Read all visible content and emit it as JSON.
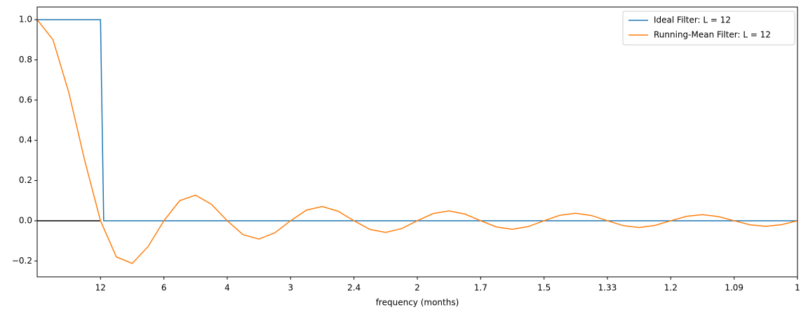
{
  "chart_data": {
    "type": "line",
    "xlabel": "frequency (months)",
    "xlim": [
      0,
      1
    ],
    "xticks": [
      {
        "value": 0.0833,
        "label": "12"
      },
      {
        "value": 0.1667,
        "label": "6"
      },
      {
        "value": 0.25,
        "label": "4"
      },
      {
        "value": 0.3333,
        "label": "3"
      },
      {
        "value": 0.4167,
        "label": "2.4"
      },
      {
        "value": 0.5,
        "label": "2"
      },
      {
        "value": 0.5833,
        "label": "1.7"
      },
      {
        "value": 0.6667,
        "label": "1.5"
      },
      {
        "value": 0.75,
        "label": "1.33"
      },
      {
        "value": 0.8333,
        "label": "1.2"
      },
      {
        "value": 0.9167,
        "label": "1.09"
      },
      1
    ],
    "ylim": [
      -0.279,
      1.063
    ],
    "yticks": [
      {
        "value": -0.2,
        "label": "−0.2"
      },
      {
        "value": 0,
        "label": "0.0"
      },
      0.2,
      0.4,
      0.6,
      0.8,
      {
        "value": 1,
        "label": "1.0"
      }
    ],
    "legend": "upper right",
    "hline": {
      "y": 0,
      "xmin": 0,
      "xmax": 0.0833,
      "color": "#000000"
    },
    "series": [
      {
        "name": "Ideal Filter: L = 12",
        "color": "#1f77b4",
        "x": [
          0,
          0.0833,
          0.0875,
          1
        ],
        "values": [
          1,
          1,
          0,
          0
        ]
      },
      {
        "name": "Running-Mean Filter: L = 12",
        "color": "#ff7f0e",
        "x": [
          0,
          0.0208,
          0.0417,
          0.0625,
          0.0833,
          0.1042,
          0.125,
          0.1458,
          0.1667,
          0.1875,
          0.2083,
          0.2292,
          0.25,
          0.2708,
          0.2917,
          0.3125,
          0.3333,
          0.3542,
          0.375,
          0.3958,
          0.4167,
          0.4375,
          0.4583,
          0.4792,
          0.5,
          0.5208,
          0.5417,
          0.5625,
          0.5833,
          0.6042,
          0.625,
          0.6458,
          0.6667,
          0.6875,
          0.7083,
          0.7292,
          0.75,
          0.7708,
          0.7917,
          0.8125,
          0.8333,
          0.8542,
          0.875,
          0.8958,
          0.9167,
          0.9375,
          0.9583,
          0.9792,
          1
        ],
        "values": [
          1,
          0.9003,
          0.6366,
          0.3001,
          0,
          -0.1801,
          -0.2122,
          -0.1286,
          0,
          0.1,
          0.1273,
          0.0818,
          0,
          -0.0693,
          -0.0909,
          -0.06,
          0,
          0.053,
          0.0707,
          0.0474,
          0,
          -0.0429,
          -0.0579,
          -0.0391,
          0,
          0.036,
          0.049,
          0.0333,
          0,
          -0.031,
          -0.0424,
          -0.029,
          0,
          0.0273,
          0.0374,
          0.0257,
          0,
          -0.0243,
          -0.0335,
          -0.0231,
          0,
          0.022,
          0.0303,
          0.0209,
          0,
          -0.02,
          -0.0277,
          -0.0192,
          0
        ]
      }
    ]
  }
}
